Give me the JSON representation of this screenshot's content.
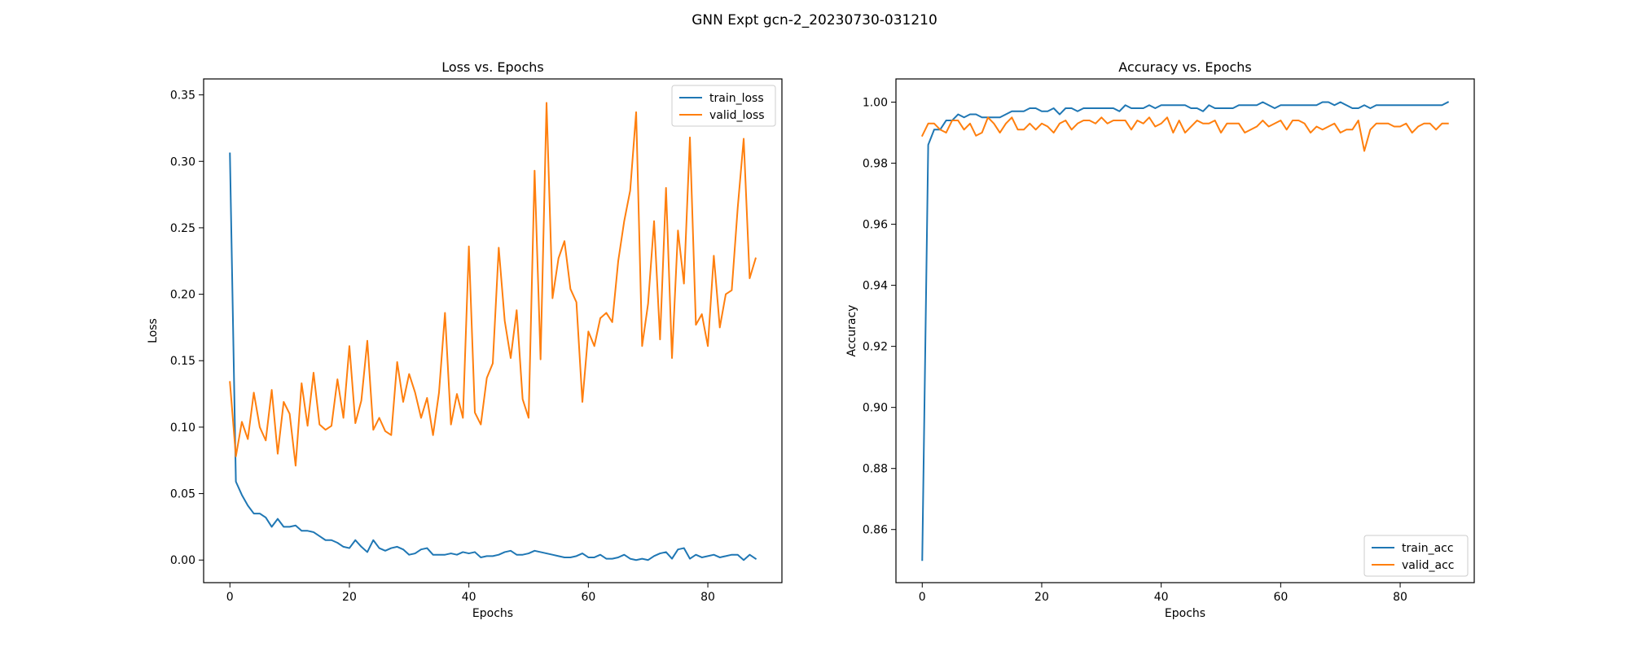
{
  "figure": {
    "suptitle": "GNN Expt gcn-2_20230730-031210"
  },
  "colors": {
    "train": "#1f77b4",
    "valid": "#ff7f0e"
  },
  "chart_data": [
    {
      "type": "line",
      "title": "Loss vs. Epochs",
      "xlabel": "Epochs",
      "ylabel": "Loss",
      "xlim": [
        -4.4,
        92.4
      ],
      "ylim": [
        -0.017,
        0.362
      ],
      "xticks": [
        0,
        20,
        40,
        60,
        80
      ],
      "yticks": [
        0.0,
        0.05,
        0.1,
        0.15,
        0.2,
        0.25,
        0.3,
        0.35
      ],
      "ytick_labels": [
        "0.00",
        "0.05",
        "0.10",
        "0.15",
        "0.20",
        "0.25",
        "0.30",
        "0.35"
      ],
      "legend_loc": "upper right",
      "series": [
        {
          "name": "train_loss",
          "color": "#1f77b4",
          "values": [
            0.306,
            0.059,
            0.049,
            0.041,
            0.035,
            0.035,
            0.032,
            0.025,
            0.031,
            0.025,
            0.025,
            0.026,
            0.022,
            0.022,
            0.021,
            0.018,
            0.015,
            0.015,
            0.013,
            0.01,
            0.009,
            0.015,
            0.01,
            0.006,
            0.015,
            0.009,
            0.007,
            0.009,
            0.01,
            0.008,
            0.004,
            0.005,
            0.008,
            0.009,
            0.004,
            0.004,
            0.004,
            0.005,
            0.004,
            0.006,
            0.005,
            0.006,
            0.002,
            0.003,
            0.003,
            0.004,
            0.006,
            0.007,
            0.004,
            0.004,
            0.005,
            0.007,
            0.006,
            0.005,
            0.004,
            0.003,
            0.002,
            0.002,
            0.003,
            0.005,
            0.002,
            0.002,
            0.004,
            0.001,
            0.001,
            0.002,
            0.004,
            0.001,
            0.0,
            0.001,
            0.0,
            0.003,
            0.005,
            0.006,
            0.001,
            0.008,
            0.009,
            0.001,
            0.004,
            0.002,
            0.003,
            0.004,
            0.002,
            0.003,
            0.004,
            0.004,
            0.0,
            0.004,
            0.001
          ]
        },
        {
          "name": "valid_loss",
          "color": "#ff7f0e",
          "values": [
            0.134,
            0.078,
            0.104,
            0.091,
            0.126,
            0.1,
            0.09,
            0.128,
            0.08,
            0.119,
            0.11,
            0.071,
            0.133,
            0.101,
            0.141,
            0.102,
            0.098,
            0.101,
            0.136,
            0.107,
            0.161,
            0.103,
            0.12,
            0.165,
            0.098,
            0.107,
            0.097,
            0.094,
            0.149,
            0.119,
            0.14,
            0.126,
            0.107,
            0.122,
            0.094,
            0.126,
            0.186,
            0.102,
            0.125,
            0.107,
            0.236,
            0.111,
            0.102,
            0.137,
            0.148,
            0.235,
            0.18,
            0.152,
            0.188,
            0.121,
            0.107,
            0.293,
            0.151,
            0.344,
            0.197,
            0.227,
            0.24,
            0.204,
            0.194,
            0.119,
            0.172,
            0.161,
            0.182,
            0.186,
            0.179,
            0.225,
            0.255,
            0.278,
            0.337,
            0.161,
            0.193,
            0.255,
            0.166,
            0.28,
            0.152,
            0.248,
            0.208,
            0.318,
            0.177,
            0.185,
            0.161,
            0.229,
            0.175,
            0.2,
            0.203,
            0.265,
            0.317,
            0.212,
            0.227
          ]
        }
      ]
    },
    {
      "type": "line",
      "title": "Accuracy vs. Epochs",
      "xlabel": "Epochs",
      "ylabel": "Accuracy",
      "xlim": [
        -4.4,
        92.4
      ],
      "ylim": [
        0.8426,
        1.0076
      ],
      "xticks": [
        0,
        20,
        40,
        60,
        80
      ],
      "yticks": [
        0.86,
        0.88,
        0.9,
        0.92,
        0.94,
        0.96,
        0.98,
        1.0
      ],
      "ytick_labels": [
        "0.86",
        "0.88",
        "0.90",
        "0.92",
        "0.94",
        "0.96",
        "0.98",
        "1.00"
      ],
      "legend_loc": "lower right",
      "series": [
        {
          "name": "train_acc",
          "color": "#1f77b4",
          "values": [
            0.85,
            0.986,
            0.991,
            0.991,
            0.994,
            0.994,
            0.996,
            0.995,
            0.996,
            0.996,
            0.995,
            0.995,
            0.995,
            0.995,
            0.996,
            0.997,
            0.997,
            0.997,
            0.998,
            0.998,
            0.997,
            0.997,
            0.998,
            0.996,
            0.998,
            0.998,
            0.997,
            0.998,
            0.998,
            0.998,
            0.998,
            0.998,
            0.998,
            0.997,
            0.999,
            0.998,
            0.998,
            0.998,
            0.999,
            0.998,
            0.999,
            0.999,
            0.999,
            0.999,
            0.999,
            0.998,
            0.998,
            0.997,
            0.999,
            0.998,
            0.998,
            0.998,
            0.998,
            0.999,
            0.999,
            0.999,
            0.999,
            1.0,
            0.999,
            0.998,
            0.999,
            0.999,
            0.999,
            0.999,
            0.999,
            0.999,
            0.999,
            1.0,
            1.0,
            0.999,
            1.0,
            0.999,
            0.998,
            0.998,
            0.999,
            0.998,
            0.999,
            0.999,
            0.999,
            0.999,
            0.999,
            0.999,
            0.999,
            0.999,
            0.999,
            0.999,
            0.999,
            0.999,
            1.0
          ]
        },
        {
          "name": "valid_acc",
          "color": "#ff7f0e",
          "values": [
            0.989,
            0.993,
            0.993,
            0.991,
            0.99,
            0.994,
            0.994,
            0.991,
            0.993,
            0.989,
            0.99,
            0.995,
            0.993,
            0.99,
            0.993,
            0.995,
            0.991,
            0.991,
            0.993,
            0.991,
            0.993,
            0.992,
            0.99,
            0.993,
            0.994,
            0.991,
            0.993,
            0.994,
            0.994,
            0.993,
            0.995,
            0.993,
            0.994,
            0.994,
            0.994,
            0.991,
            0.994,
            0.993,
            0.995,
            0.992,
            0.993,
            0.995,
            0.99,
            0.994,
            0.99,
            0.992,
            0.994,
            0.993,
            0.993,
            0.994,
            0.99,
            0.993,
            0.993,
            0.993,
            0.99,
            0.991,
            0.992,
            0.994,
            0.992,
            0.993,
            0.994,
            0.991,
            0.994,
            0.994,
            0.993,
            0.99,
            0.992,
            0.991,
            0.992,
            0.993,
            0.99,
            0.991,
            0.991,
            0.994,
            0.984,
            0.991,
            0.993,
            0.993,
            0.993,
            0.992,
            0.992,
            0.993,
            0.99,
            0.992,
            0.993,
            0.993,
            0.991,
            0.993,
            0.993
          ]
        }
      ]
    }
  ]
}
